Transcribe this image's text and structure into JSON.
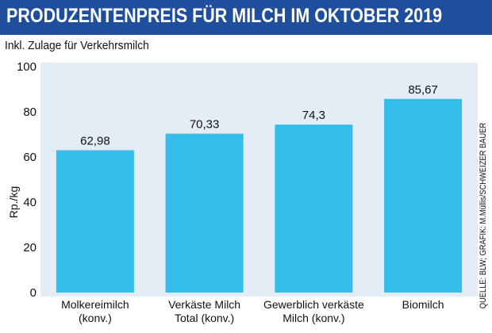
{
  "header": {
    "title": "PRODUZENTENPREIS FÜR MILCH IM OKTOBER 2019",
    "subtitle": "Inkl. Zulage für Verkehrsmilch"
  },
  "credit": "QUELLE: BLW; GRAFIK: M.Müllis/SCHWEIZER BAUER",
  "colors": {
    "title_bar": "#1f4f9c",
    "bar": "#33bdea",
    "plot_background": "#e4ecf5"
  },
  "chart_data": {
    "type": "bar",
    "title": "PRODUZENTENPREIS FÜR MILCH IM OKTOBER 2019",
    "subtitle": "Inkl. Zulage für Verkehrsmilch",
    "xlabel": "",
    "ylabel": "Rp./kg",
    "ylim": [
      0,
      100
    ],
    "yticks": [
      0,
      20,
      40,
      60,
      80,
      100
    ],
    "grid": false,
    "categories": [
      [
        "Molkereimilch",
        "(konv.)"
      ],
      [
        "Verkäste Milch",
        "Total (konv.)"
      ],
      [
        "Gewerblich verkäste",
        "Milch (konv.)"
      ],
      [
        "Biomilch"
      ]
    ],
    "values": [
      62.98,
      70.33,
      74.3,
      85.67
    ],
    "value_labels": [
      "62,98",
      "70,33",
      "74,3",
      "85,67"
    ]
  }
}
